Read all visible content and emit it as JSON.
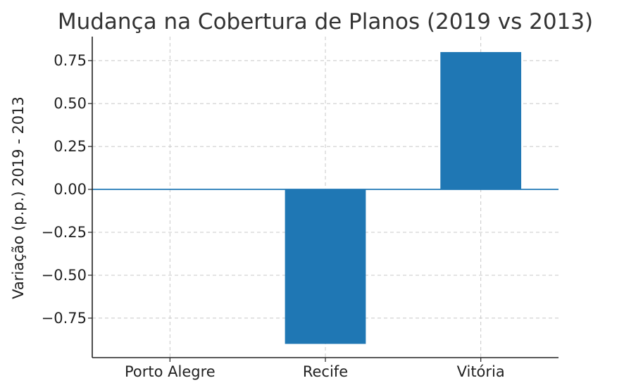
{
  "chart_data": {
    "type": "bar",
    "title": "Mudança na Cobertura de Planos (2019 vs 2013)",
    "xlabel": "",
    "ylabel": "Variação (p.p.) 2019 - 2013",
    "categories": [
      "Porto Alegre",
      "Recife",
      "Vitória"
    ],
    "values": [
      0.0,
      -0.9,
      0.8
    ],
    "ylim": [
      -0.98,
      0.89
    ],
    "yticks": [
      -0.75,
      -0.5,
      -0.25,
      0.0,
      0.25,
      0.5,
      0.75
    ],
    "ytick_labels": [
      "−0.75",
      "−0.50",
      "−0.25",
      "0.00",
      "0.25",
      "0.50",
      "0.75"
    ],
    "grid": true,
    "zero_line": true,
    "colors": {
      "bar": "#1f77b4",
      "zero_line": "#1f77b4"
    }
  }
}
